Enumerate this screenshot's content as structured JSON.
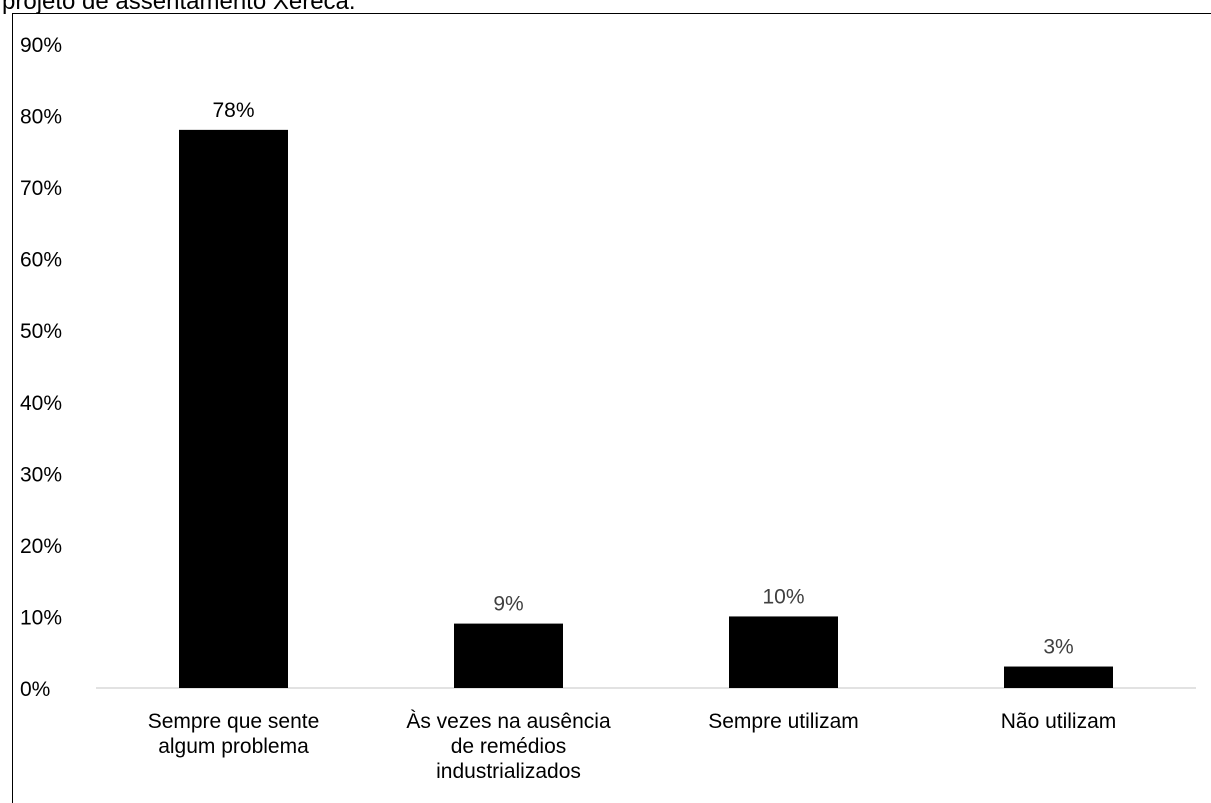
{
  "caption": "projeto de assentamento Xerecá.",
  "colors": {
    "bar": "#000000",
    "axis": "#d9d9d9",
    "label_dark": "#000000",
    "label_gray": "#404040"
  },
  "chart_data": {
    "type": "bar",
    "title": "",
    "xlabel": "",
    "ylabel": "",
    "ylim": [
      0,
      90
    ],
    "yticks": [
      "0%",
      "10%",
      "20%",
      "30%",
      "40%",
      "50%",
      "60%",
      "70%",
      "80%",
      "90%"
    ],
    "grid": false,
    "categories": [
      [
        "Sempre que sente",
        "algum problema"
      ],
      [
        "Às vezes na ausência",
        "de remédios",
        "industrializados"
      ],
      [
        "Sempre utilizam"
      ],
      [
        "Não utilizam"
      ]
    ],
    "values": [
      78,
      9,
      10,
      3
    ],
    "data_labels": [
      "78%",
      "9%",
      "10%",
      "3%"
    ]
  }
}
